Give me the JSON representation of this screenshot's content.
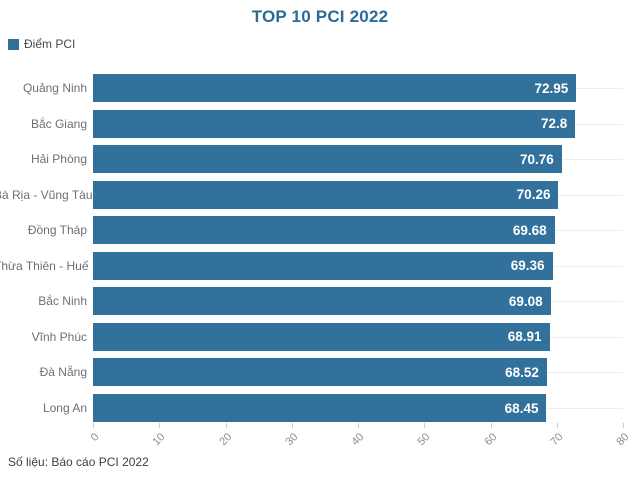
{
  "title": "TOP 10 PCI 2022",
  "legend": {
    "label": "Điểm PCI"
  },
  "footer": {
    "source": "Số liệu: Báo cáo PCI 2022"
  },
  "colors": {
    "bar": "#31719b",
    "title": "#2b6b96",
    "value_label": "#ffffff",
    "category_label": "#6f6f6f",
    "legend_text": "#4a4a4a",
    "tick_label": "#8e8e8e",
    "tick_mark": "#cccccc",
    "hairline": "#ededed",
    "footer_text": "#3e3e3e"
  },
  "chart_data": {
    "type": "bar",
    "orientation": "horizontal",
    "title": "TOP 10 PCI 2022",
    "legend": [
      "Điểm PCI"
    ],
    "legend_position": "top-left",
    "categories": [
      "Quảng Ninh",
      "Bắc Giang",
      "Hải Phòng",
      "Bà Rịa - Vũng Tàu",
      "Đồng Tháp",
      "Thừa Thiên - Huế",
      "Bắc Ninh",
      "Vĩnh Phúc",
      "Đà Nẵng",
      "Long An"
    ],
    "values": [
      72.95,
      72.8,
      70.76,
      70.26,
      69.68,
      69.36,
      69.08,
      68.91,
      68.52,
      68.45
    ],
    "value_labels": [
      "72.95",
      "72.8",
      "70.76",
      "70.26",
      "69.68",
      "69.36",
      "69.08",
      "68.91",
      "68.52",
      "68.45"
    ],
    "xlabel": "",
    "ylabel": "",
    "xlim": [
      0,
      80
    ],
    "x_ticks": [
      0,
      10,
      20,
      30,
      40,
      50,
      60,
      70,
      80
    ],
    "x_tick_rotation": -45,
    "grid": "row-hairlines",
    "source": "Số liệu: Báo cáo PCI 2022"
  }
}
